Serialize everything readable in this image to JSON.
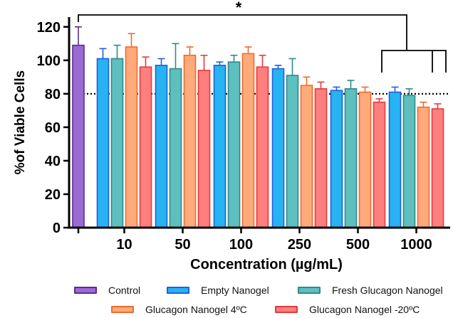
{
  "chart_data": {
    "type": "bar",
    "title": "",
    "xlabel": "Concentration (µg/mL)",
    "ylabel": "%of Viable Cells",
    "ylim": [
      0,
      125
    ],
    "yticks": [
      0,
      20,
      40,
      60,
      80,
      100,
      120
    ],
    "reference_line": 80,
    "significance_marker": "*",
    "control": {
      "name": "Control",
      "value": 109,
      "error": 11,
      "color": "#9B6BD3",
      "edge": "#5B2D91"
    },
    "categories": [
      "10",
      "50",
      "100",
      "250",
      "500",
      "1000"
    ],
    "series": [
      {
        "name": "Empty Nanogel",
        "color": "#27B3F2",
        "edge": "#1F5FE0",
        "values": [
          101,
          97,
          97,
          95,
          82,
          81
        ],
        "errors": [
          6,
          4,
          2,
          2,
          2,
          3
        ]
      },
      {
        "name": "Fresh Glucagon Nanogel",
        "color": "#5DC0BF",
        "edge": "#2E8A8A",
        "values": [
          101,
          95,
          99,
          91,
          83,
          79
        ],
        "errors": [
          8,
          15,
          4,
          10,
          5,
          4
        ]
      },
      {
        "name": "Glucagon Nanogel 4ºC",
        "color": "#FFAA7A",
        "edge": "#EF6B2D",
        "values": [
          108,
          103,
          104,
          85,
          81,
          72
        ],
        "errors": [
          8,
          5,
          4,
          5,
          3,
          3
        ]
      },
      {
        "name": "Glucagon Nanogel -20ºC",
        "color": "#FF7E7E",
        "edge": "#E43B3B",
        "values": [
          96,
          94,
          96,
          83,
          75,
          71
        ],
        "errors": [
          6,
          9,
          7,
          4,
          2,
          3
        ]
      }
    ]
  }
}
